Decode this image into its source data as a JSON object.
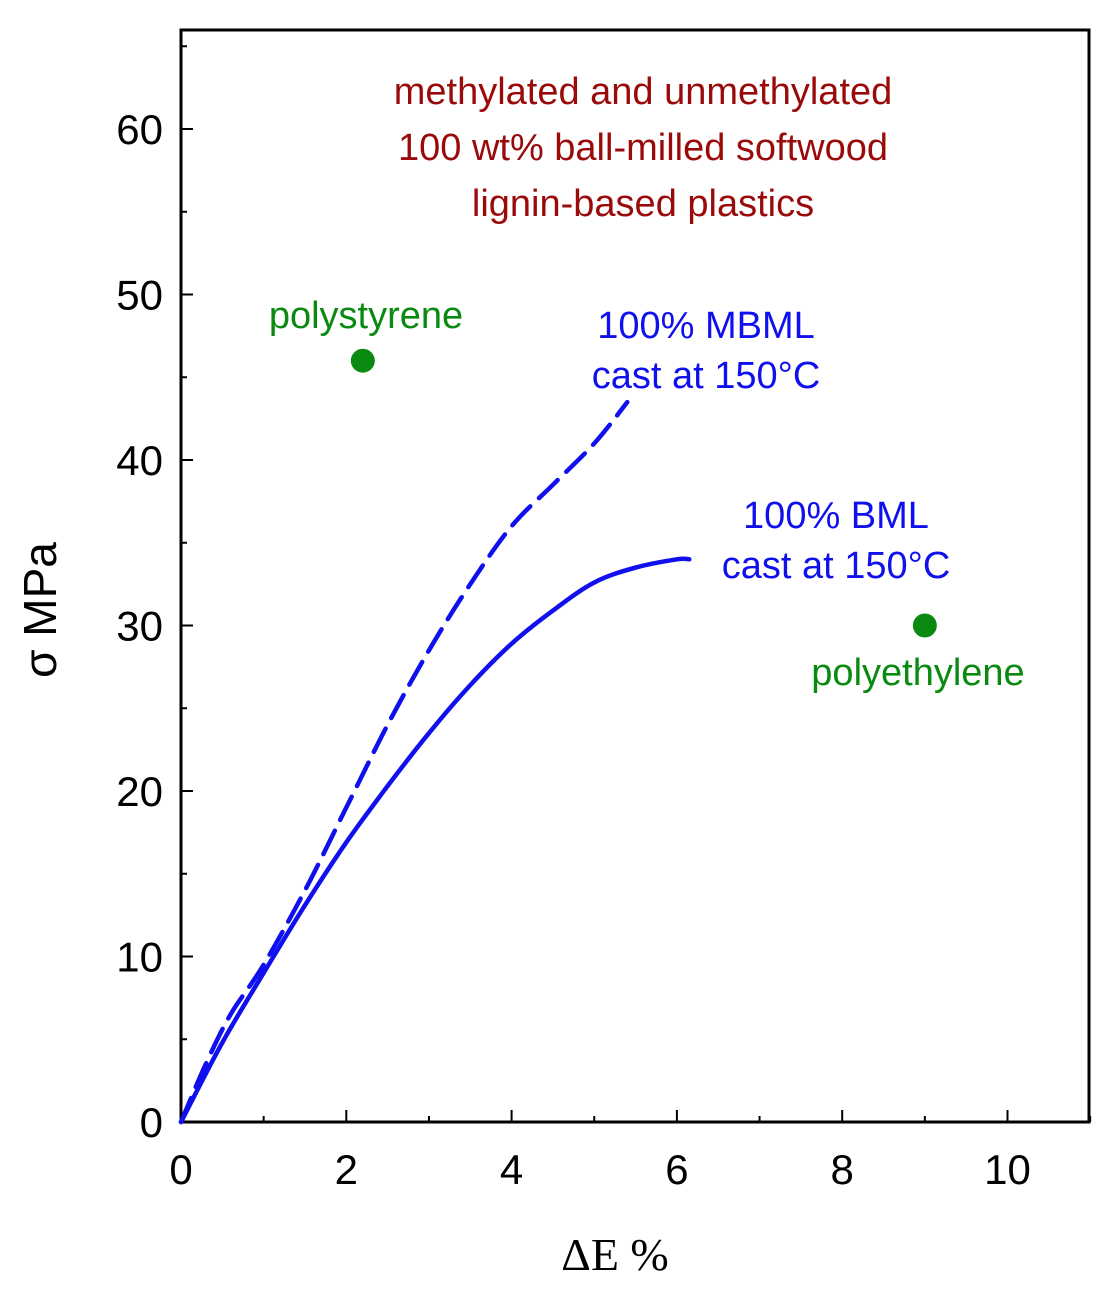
{
  "chart_data": {
    "type": "line",
    "title": [
      "methylated and unmethylated",
      "100 wt% ball-milled softwood",
      "lignin-based plastics"
    ],
    "xlabel": "ΔΕ  %",
    "ylabel": "σ MPa",
    "xlim": [
      0,
      11
    ],
    "ylim": [
      0,
      66
    ],
    "xticks": [
      "0",
      "2",
      "4",
      "6",
      "8",
      "10"
    ],
    "yticks": [
      "0",
      "10",
      "20",
      "30",
      "40",
      "50",
      "60"
    ],
    "grid": false,
    "series": [
      {
        "name": "100% MBML cast at 150°C",
        "style": "dashed",
        "color": "#1010ee",
        "x": [
          0,
          0.3,
          0.6,
          1.0,
          1.5,
          2.0,
          2.5,
          3.0,
          3.5,
          4.0,
          4.5,
          5.0,
          5.4
        ],
        "y": [
          0,
          3.5,
          6.5,
          9.5,
          14.0,
          19.0,
          24.0,
          28.5,
          32.5,
          36.0,
          38.5,
          41.0,
          43.5
        ]
      },
      {
        "name": "100% BML cast at 150°C",
        "style": "solid",
        "color": "#1010ee",
        "x": [
          0,
          0.5,
          1.0,
          1.5,
          2.0,
          2.5,
          3.0,
          3.5,
          4.0,
          4.5,
          5.0,
          5.5,
          6.0,
          6.15
        ],
        "y": [
          0,
          4.8,
          9.0,
          13.1,
          16.9,
          20.3,
          23.5,
          26.4,
          28.9,
          30.9,
          32.6,
          33.5,
          34.0,
          34.0
        ]
      }
    ],
    "points": [
      {
        "name": "polystyrene",
        "x": 2.2,
        "y": 46,
        "color": "#0a8a10"
      },
      {
        "name": "polyethylene",
        "x": 9.0,
        "y": 30,
        "color": "#0a8a10"
      }
    ],
    "annotations": {
      "polystyrene": "polystyrene",
      "polyethylene": "polyethylene",
      "mbml": [
        "100% MBML",
        "cast at 150°C"
      ],
      "bml": [
        "100% BML",
        "cast at 150°C"
      ]
    },
    "colors": {
      "title": "#9a0a0a",
      "series": "#1010ee",
      "points": "#0a8a10"
    }
  }
}
